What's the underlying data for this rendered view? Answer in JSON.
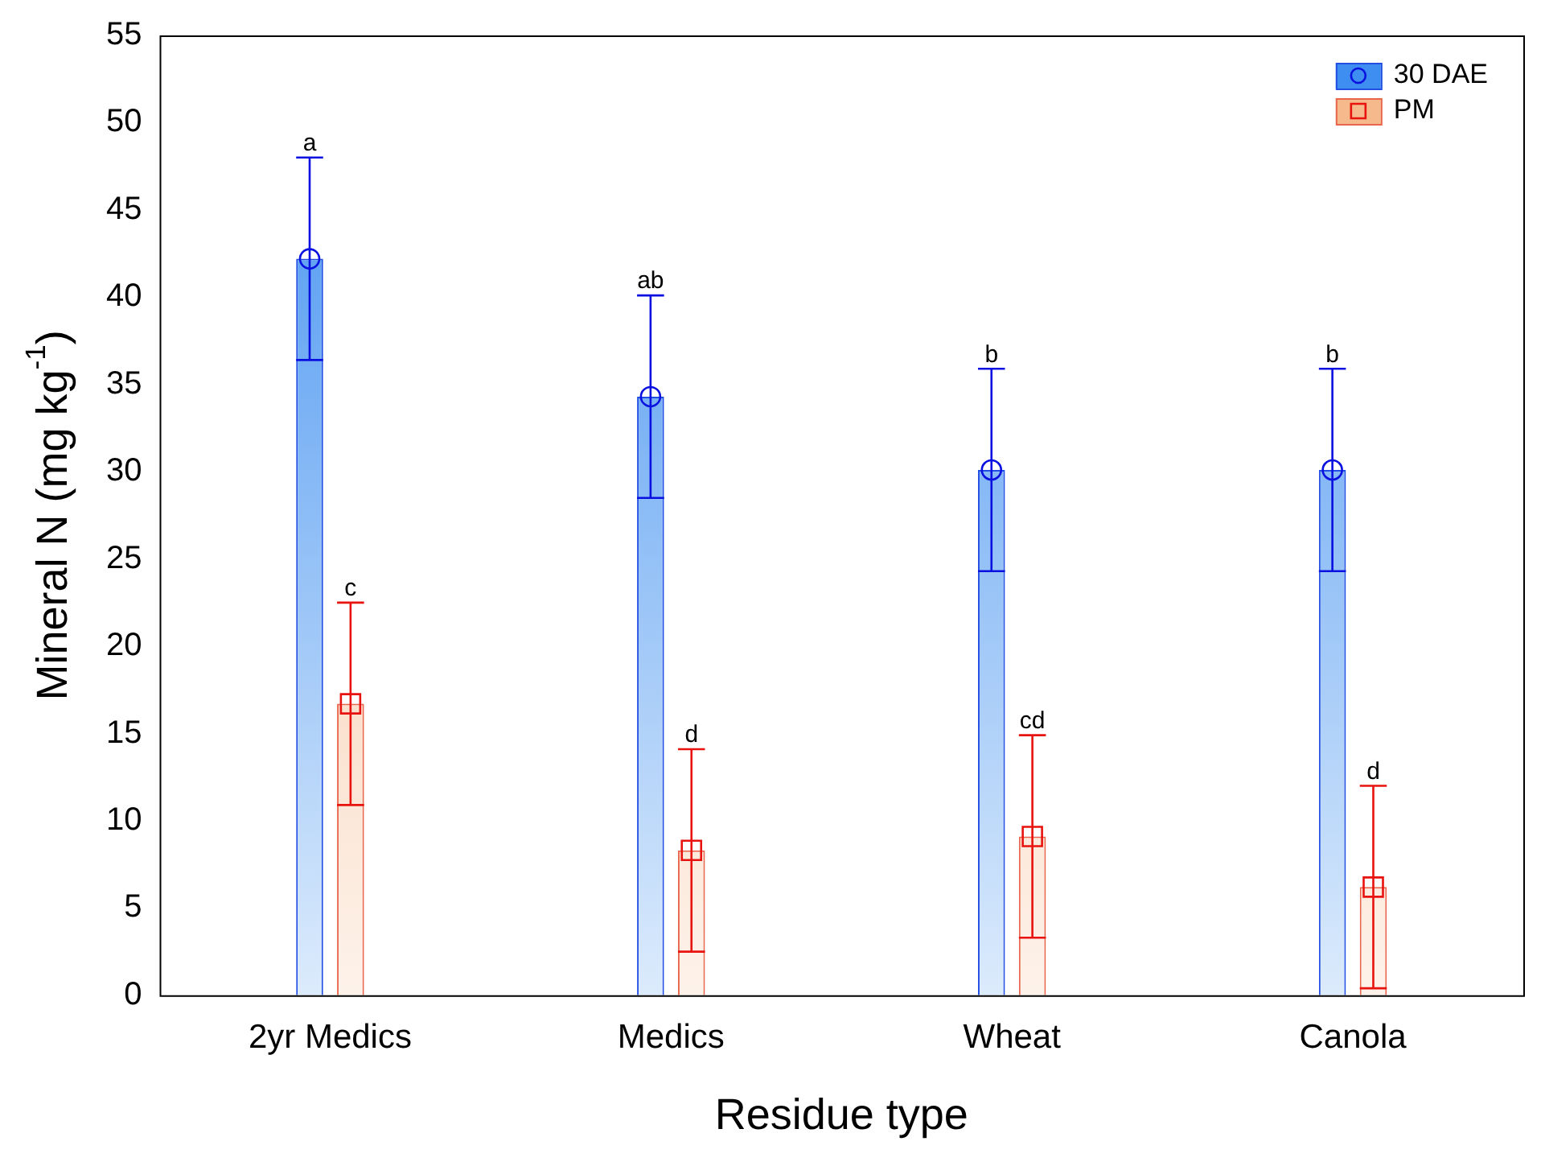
{
  "chart_data": {
    "type": "bar",
    "xlabel": "Residue type",
    "ylabel": "Mineral N (mg kg$^{-1}$)",
    "categories": [
      "2yr Medics",
      "Medics",
      "Wheat",
      "Canola"
    ],
    "series": [
      {
        "name": "30 DAE",
        "color": "#3d8ef0",
        "values": [
          42.2,
          34.3,
          30.1,
          30.1
        ],
        "errors": [
          5.8,
          5.8,
          5.8,
          5.8
        ]
      },
      {
        "name": "PM",
        "color": "#f5b98c",
        "values": [
          16.7,
          8.3,
          9.1,
          6.2
        ],
        "errors": [
          5.8,
          5.8,
          5.8,
          5.8
        ]
      },
      {
        "type": "scatter",
        "color": "#0a10e0",
        "marker": "circle",
        "x": [
          "2yr Medics",
          "Medics",
          "Wheat",
          "Canola"
        ],
        "values": [
          42.2,
          34.3,
          30.1,
          30.1
        ]
      },
      {
        "type": "scatter",
        "color": "#e8130e",
        "marker": "square",
        "x": [
          "2yr Medics",
          "Medics",
          "Wheat",
          "Canola"
        ],
        "values": [
          16.7,
          8.3,
          9.1,
          6.2
        ]
      }
    ],
    "ylim": [
      0,
      55
    ],
    "yticks": [
      0,
      5,
      10,
      15,
      20,
      25,
      30,
      35,
      40,
      45,
      50,
      55
    ],
    "grid": false,
    "legend": "top right",
    "annotations": [
      {
        "text": "a",
        "x": "2yr Medics",
        "y": 48
      },
      {
        "text": "c",
        "x": "2yr Medics",
        "y": 22.5
      },
      {
        "text": "ab",
        "x": "Medics",
        "y": 40.1
      },
      {
        "text": "d",
        "x": "Medics",
        "y": 14.1
      },
      {
        "text": "b",
        "x": "Wheat",
        "y": 35.9
      },
      {
        "text": "cd",
        "x": "Wheat",
        "y": 14.9
      },
      {
        "text": "b",
        "x": "Canola",
        "y": 35.9
      },
      {
        "text": "d",
        "x": "Canola",
        "y": 12
      }
    ]
  }
}
